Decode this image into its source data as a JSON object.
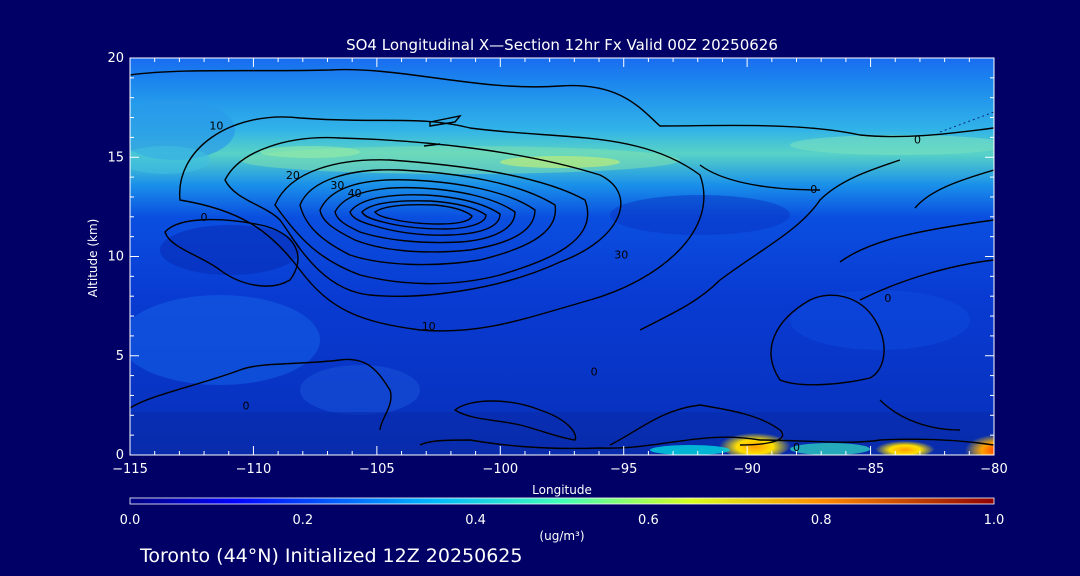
{
  "chart_data": {
    "type": "heatmap",
    "title": "SO4 Longitudinal X—Section 12hr  Fx Valid 00Z 20250626",
    "xlabel": "Longitude",
    "ylabel": "Altitude (km)",
    "xlim": [
      -115,
      -80
    ],
    "ylim": [
      0,
      20
    ],
    "x_ticks": [
      -115,
      -110,
      -105,
      -100,
      -95,
      -90,
      -85,
      -80
    ],
    "x_tick_labels": [
      "−115",
      "−110",
      "−105",
      "−100",
      "−95",
      "−90",
      "−85",
      "−80"
    ],
    "y_ticks": [
      0,
      5,
      10,
      15,
      20
    ],
    "y_tick_labels": [
      "0",
      "5",
      "10",
      "15",
      "20"
    ],
    "colorbar": {
      "label": "(ug/m³)",
      "range": [
        0.0,
        1.0
      ],
      "ticks": [
        0.0,
        0.2,
        0.4,
        0.6,
        0.8,
        1.0
      ],
      "tick_labels": [
        "0.0",
        "0.2",
        "0.4",
        "0.6",
        "0.8",
        "1.0"
      ]
    },
    "contour_labels": [
      {
        "text": "10",
        "lon": -111.5,
        "alt": 16.6
      },
      {
        "text": "20",
        "lon": -108.4,
        "alt": 14.1
      },
      {
        "text": "30",
        "lon": -106.6,
        "alt": 13.6
      },
      {
        "text": "40",
        "lon": -105.9,
        "alt": 13.2
      },
      {
        "text": "0",
        "lon": -112.0,
        "alt": 12.0
      },
      {
        "text": "30",
        "lon": -95.1,
        "alt": 10.1
      },
      {
        "text": "10",
        "lon": -102.9,
        "alt": 6.5
      },
      {
        "text": "0",
        "lon": -96.2,
        "alt": 4.2
      },
      {
        "text": "0",
        "lon": -110.3,
        "alt": 2.5
      },
      {
        "text": "0",
        "lon": -88.0,
        "alt": 0.4
      },
      {
        "text": "0",
        "lon": -84.3,
        "alt": 7.9
      },
      {
        "text": "0",
        "lon": -87.3,
        "alt": 13.4
      },
      {
        "text": "0",
        "lon": -83.1,
        "alt": 15.9
      }
    ]
  },
  "footer": {
    "text": "Toronto (44°N) Initialized 12Z 20250625"
  },
  "colors": {
    "background": "#000066",
    "field_base": "#0a3fd6",
    "upper_band": "#1fa9e8",
    "contour": "#000000"
  }
}
